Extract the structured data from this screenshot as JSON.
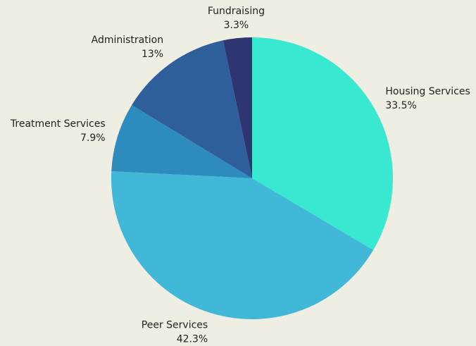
{
  "chart_data": {
    "type": "pie",
    "categories": [
      "Housing Services",
      "Peer Services",
      "Treatment Services",
      "Administration",
      "Fundraising"
    ],
    "values": [
      33.5,
      42.3,
      7.9,
      13,
      3.3
    ],
    "value_labels": [
      "33.5%",
      "42.3%",
      "7.9%",
      "13%",
      "3.3%"
    ],
    "colors": [
      "#38e8d0",
      "#42b8d8",
      "#2e8bbd",
      "#2f5f9a",
      "#2e3570"
    ]
  }
}
